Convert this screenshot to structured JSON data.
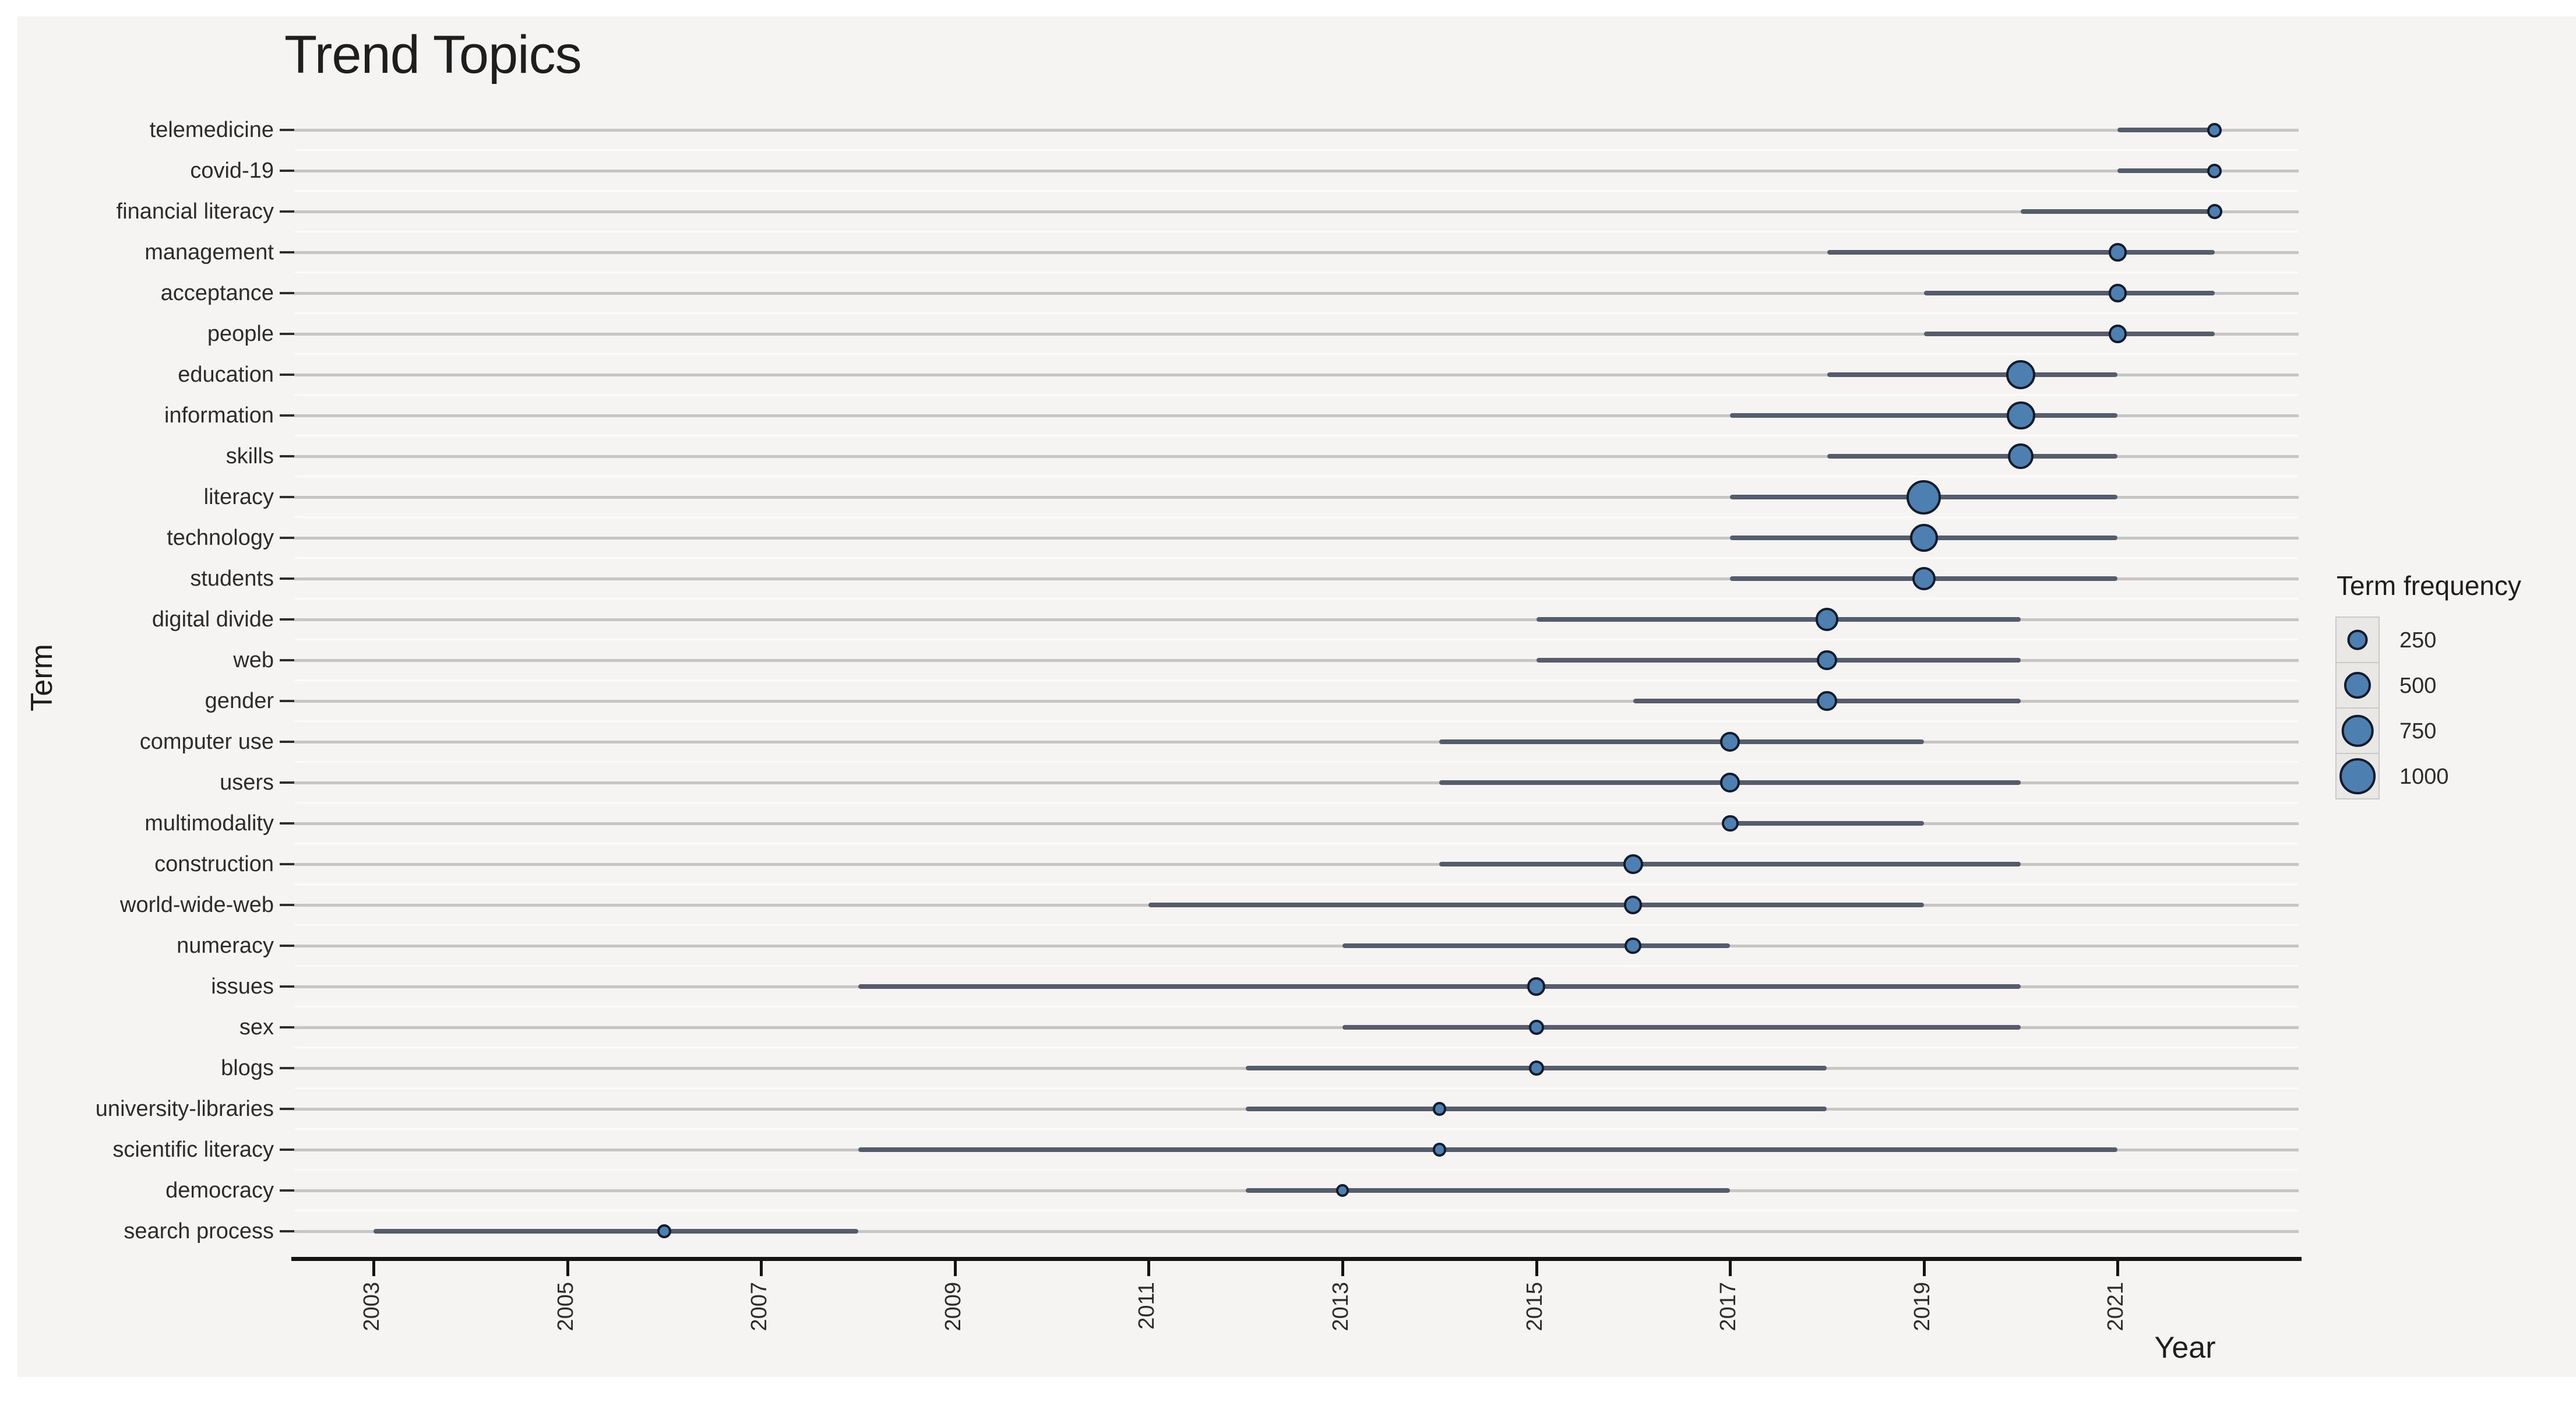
{
  "chart_data": {
    "type": "scatter",
    "variant": "trend-timeline-dot-range-plot",
    "title": "Trend Topics",
    "xlabel": "Year",
    "ylabel": "Term",
    "x_ticks": [
      2003,
      2005,
      2007,
      2009,
      2011,
      2013,
      2015,
      2017,
      2019,
      2021
    ],
    "x_range_years": [
      2002.2,
      2022.9
    ],
    "grid": "horizontal-major",
    "legend": {
      "title": "Term frequency",
      "position": "right",
      "sizes": [
        250,
        500,
        750,
        1000
      ]
    },
    "colors": {
      "dot_fill": "#4d80b1",
      "dot_border": "#131c2c",
      "range_segment": "#555d6d",
      "gridline": "#c6c6c6",
      "axis": "#141414",
      "canvas_background": "#f5f4f2",
      "text": "#2c2c2c"
    },
    "series": [
      {
        "term": "telemedicine",
        "start_year": 2021,
        "peak_year": 2022,
        "end_year": 2022,
        "frequency": 100
      },
      {
        "term": "covid-19",
        "start_year": 2021,
        "peak_year": 2022,
        "end_year": 2022,
        "frequency": 100
      },
      {
        "term": "financial literacy",
        "start_year": 2020,
        "peak_year": 2022,
        "end_year": 2022,
        "frequency": 110
      },
      {
        "term": "management",
        "start_year": 2018,
        "peak_year": 2021,
        "end_year": 2022,
        "frequency": 185
      },
      {
        "term": "acceptance",
        "start_year": 2019,
        "peak_year": 2021,
        "end_year": 2022,
        "frequency": 185
      },
      {
        "term": "people",
        "start_year": 2019,
        "peak_year": 2021,
        "end_year": 2022,
        "frequency": 185
      },
      {
        "term": "education",
        "start_year": 2018,
        "peak_year": 2020,
        "end_year": 2021,
        "frequency": 610
      },
      {
        "term": "information",
        "start_year": 2017,
        "peak_year": 2020,
        "end_year": 2021,
        "frequency": 580
      },
      {
        "term": "skills",
        "start_year": 2018,
        "peak_year": 2020,
        "end_year": 2021,
        "frequency": 450
      },
      {
        "term": "literacy",
        "start_year": 2017,
        "peak_year": 2019,
        "end_year": 2021,
        "frequency": 900
      },
      {
        "term": "technology",
        "start_year": 2017,
        "peak_year": 2019,
        "end_year": 2021,
        "frequency": 550
      },
      {
        "term": "students",
        "start_year": 2017,
        "peak_year": 2019,
        "end_year": 2021,
        "frequency": 360
      },
      {
        "term": "digital divide",
        "start_year": 2015,
        "peak_year": 2018,
        "end_year": 2020,
        "frequency": 350
      },
      {
        "term": "web",
        "start_year": 2015,
        "peak_year": 2018,
        "end_year": 2020,
        "frequency": 250
      },
      {
        "term": "gender",
        "start_year": 2016,
        "peak_year": 2018,
        "end_year": 2020,
        "frequency": 250
      },
      {
        "term": "computer use",
        "start_year": 2014,
        "peak_year": 2017,
        "end_year": 2019,
        "frequency": 230
      },
      {
        "term": "users",
        "start_year": 2014,
        "peak_year": 2017,
        "end_year": 2020,
        "frequency": 230
      },
      {
        "term": "multimodality",
        "start_year": 2017,
        "peak_year": 2017,
        "end_year": 2019,
        "frequency": 150
      },
      {
        "term": "construction",
        "start_year": 2014,
        "peak_year": 2016,
        "end_year": 2020,
        "frequency": 230
      },
      {
        "term": "world-wide-web",
        "start_year": 2011,
        "peak_year": 2016,
        "end_year": 2019,
        "frequency": 185
      },
      {
        "term": "numeracy",
        "start_year": 2013,
        "peak_year": 2016,
        "end_year": 2017,
        "frequency": 150
      },
      {
        "term": "issues",
        "start_year": 2008,
        "peak_year": 2015,
        "end_year": 2020,
        "frequency": 185
      },
      {
        "term": "sex",
        "start_year": 2013,
        "peak_year": 2015,
        "end_year": 2020,
        "frequency": 110
      },
      {
        "term": "blogs",
        "start_year": 2012,
        "peak_year": 2015,
        "end_year": 2018,
        "frequency": 110
      },
      {
        "term": "university-libraries",
        "start_year": 2012,
        "peak_year": 2014,
        "end_year": 2018,
        "frequency": 80
      },
      {
        "term": "scientific literacy",
        "start_year": 2008,
        "peak_year": 2014,
        "end_year": 2021,
        "frequency": 80
      },
      {
        "term": "democracy",
        "start_year": 2012,
        "peak_year": 2013,
        "end_year": 2017,
        "frequency": 70
      },
      {
        "term": "search process",
        "start_year": 2003,
        "peak_year": 2006,
        "end_year": 2008,
        "frequency": 90
      }
    ]
  }
}
